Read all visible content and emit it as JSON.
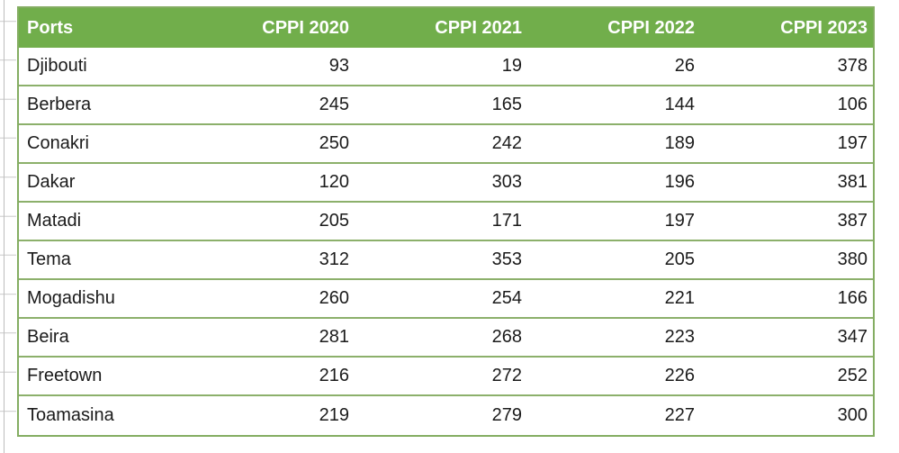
{
  "table": {
    "columns": [
      "Ports",
      "CPPI 2020",
      "CPPI 2021",
      "CPPI 2022",
      "CPPI 2023"
    ],
    "rows": [
      {
        "port": "Djibouti",
        "values": [
          "93",
          "19",
          "26",
          "378"
        ]
      },
      {
        "port": "Berbera",
        "values": [
          "245",
          "165",
          "144",
          "106"
        ]
      },
      {
        "port": "Conakri",
        "values": [
          "250",
          "242",
          "189",
          "197"
        ]
      },
      {
        "port": "Dakar",
        "values": [
          "120",
          "303",
          "196",
          "381"
        ]
      },
      {
        "port": "Matadi",
        "values": [
          "205",
          "171",
          "197",
          "387"
        ]
      },
      {
        "port": "Tema",
        "values": [
          "312",
          "353",
          "205",
          "380"
        ]
      },
      {
        "port": "Mogadishu",
        "values": [
          "260",
          "254",
          "221",
          "166"
        ]
      },
      {
        "port": "Beira",
        "values": [
          "281",
          "268",
          "223",
          "347"
        ]
      },
      {
        "port": "Freetown",
        "values": [
          "216",
          "272",
          "226",
          "252"
        ]
      },
      {
        "port": "Toamasina",
        "values": [
          "219",
          "279",
          "227",
          "300"
        ]
      }
    ]
  },
  "chart_data": {
    "type": "table",
    "title": "",
    "columns": [
      "Ports",
      "CPPI 2020",
      "CPPI 2021",
      "CPPI 2022",
      "CPPI 2023"
    ],
    "categories": [
      "Djibouti",
      "Berbera",
      "Conakri",
      "Dakar",
      "Matadi",
      "Tema",
      "Mogadishu",
      "Beira",
      "Freetown",
      "Toamasina"
    ],
    "series": [
      {
        "name": "CPPI 2020",
        "values": [
          93,
          245,
          250,
          120,
          205,
          312,
          260,
          281,
          216,
          219
        ]
      },
      {
        "name": "CPPI 2021",
        "values": [
          19,
          165,
          242,
          303,
          171,
          353,
          254,
          268,
          272,
          279
        ]
      },
      {
        "name": "CPPI 2022",
        "values": [
          26,
          144,
          189,
          196,
          197,
          205,
          221,
          223,
          226,
          227
        ]
      },
      {
        "name": "CPPI 2023",
        "values": [
          378,
          106,
          197,
          381,
          387,
          380,
          166,
          347,
          252,
          300
        ]
      }
    ]
  },
  "colors": {
    "header_bg": "#71ae4b",
    "header_text": "#ffffff",
    "row_border": "#8cb06b",
    "table_border": "#84ad62",
    "body_text": "#1b1b1b",
    "gridline": "#c9c9c9"
  }
}
